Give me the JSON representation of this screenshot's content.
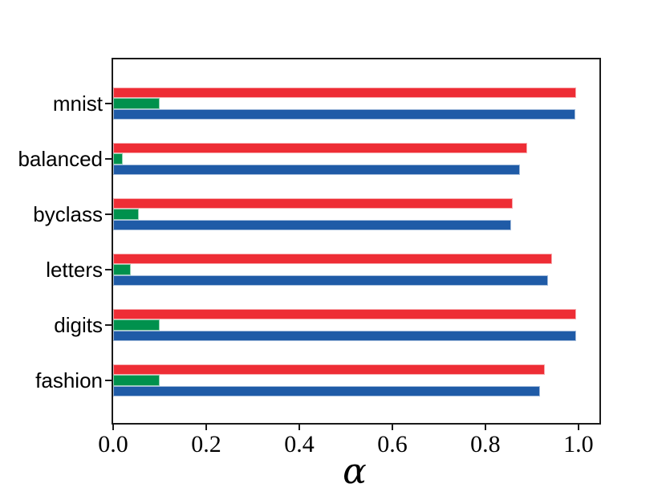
{
  "chart_data": {
    "type": "bar",
    "orientation": "horizontal",
    "title": "",
    "xlabel": "α",
    "ylabel": "",
    "categories": [
      "mnist",
      "balanced",
      "byclass",
      "letters",
      "digits",
      "fashion"
    ],
    "series": [
      {
        "name": "red",
        "color": "#ee2d35",
        "values": [
          0.995,
          0.889,
          0.859,
          0.944,
          0.995,
          0.928
        ]
      },
      {
        "name": "green",
        "color": "#00914d",
        "values": [
          0.1,
          0.021,
          0.055,
          0.038,
          0.1,
          0.1
        ]
      },
      {
        "name": "blue",
        "color": "#1f5ba7",
        "values": [
          0.993,
          0.875,
          0.855,
          0.935,
          0.995,
          0.918
        ]
      }
    ],
    "x_ticks": [
      "0.0",
      "0.2",
      "0.4",
      "0.6",
      "0.8",
      "1.0"
    ],
    "xlim": [
      0.0,
      1.045
    ],
    "grid": false,
    "axis_color": "#1a1a1a"
  }
}
